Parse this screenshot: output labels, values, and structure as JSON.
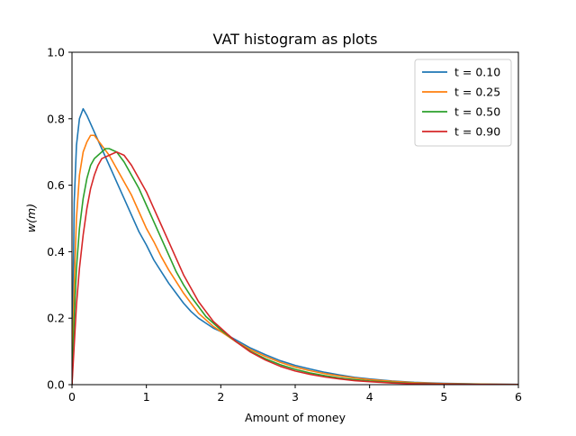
{
  "chart_data": {
    "type": "line",
    "title": "VAT histogram as plots",
    "xlabel": "Amount of money",
    "ylabel": "w(m)",
    "xlim": [
      0,
      6
    ],
    "ylim": [
      0,
      1.0
    ],
    "xticks": [
      0,
      1,
      2,
      3,
      4,
      5,
      6
    ],
    "xtick_labels": [
      "0",
      "1",
      "2",
      "3",
      "4",
      "5",
      "6"
    ],
    "yticks": [
      0.0,
      0.2,
      0.4,
      0.6,
      0.8,
      1.0
    ],
    "ytick_labels": [
      "0.0",
      "0.2",
      "0.4",
      "0.6",
      "0.8",
      "1.0"
    ],
    "grid": false,
    "legend_position": "top-right",
    "series": [
      {
        "name": "t = 0.10",
        "color": "#1f77b4",
        "points": [
          [
            0,
            0
          ],
          [
            0.03,
            0.55
          ],
          [
            0.06,
            0.72
          ],
          [
            0.1,
            0.8
          ],
          [
            0.15,
            0.83
          ],
          [
            0.2,
            0.81
          ],
          [
            0.3,
            0.76
          ],
          [
            0.4,
            0.71
          ],
          [
            0.5,
            0.66
          ],
          [
            0.6,
            0.61
          ],
          [
            0.7,
            0.56
          ],
          [
            0.8,
            0.51
          ],
          [
            0.9,
            0.46
          ],
          [
            1.0,
            0.42
          ],
          [
            1.1,
            0.375
          ],
          [
            1.2,
            0.34
          ],
          [
            1.3,
            0.305
          ],
          [
            1.4,
            0.275
          ],
          [
            1.5,
            0.245
          ],
          [
            1.6,
            0.22
          ],
          [
            1.7,
            0.2
          ],
          [
            1.8,
            0.185
          ],
          [
            1.9,
            0.17
          ],
          [
            2.0,
            0.16
          ],
          [
            2.2,
            0.135
          ],
          [
            2.4,
            0.11
          ],
          [
            2.6,
            0.09
          ],
          [
            2.8,
            0.072
          ],
          [
            3.0,
            0.058
          ],
          [
            3.2,
            0.047
          ],
          [
            3.4,
            0.037
          ],
          [
            3.6,
            0.029
          ],
          [
            3.8,
            0.022
          ],
          [
            4.0,
            0.017
          ],
          [
            4.3,
            0.011
          ],
          [
            4.6,
            0.007
          ],
          [
            5.0,
            0.004
          ],
          [
            5.5,
            0.002
          ],
          [
            6.0,
            0.001
          ]
        ]
      },
      {
        "name": "t = 0.25",
        "color": "#ff7f0e",
        "points": [
          [
            0,
            0
          ],
          [
            0.03,
            0.3
          ],
          [
            0.06,
            0.5
          ],
          [
            0.1,
            0.63
          ],
          [
            0.15,
            0.7
          ],
          [
            0.2,
            0.73
          ],
          [
            0.25,
            0.75
          ],
          [
            0.3,
            0.75
          ],
          [
            0.4,
            0.72
          ],
          [
            0.5,
            0.69
          ],
          [
            0.6,
            0.65
          ],
          [
            0.7,
            0.61
          ],
          [
            0.8,
            0.57
          ],
          [
            0.9,
            0.52
          ],
          [
            1.0,
            0.47
          ],
          [
            1.1,
            0.43
          ],
          [
            1.2,
            0.385
          ],
          [
            1.3,
            0.345
          ],
          [
            1.4,
            0.31
          ],
          [
            1.5,
            0.275
          ],
          [
            1.6,
            0.245
          ],
          [
            1.7,
            0.215
          ],
          [
            1.8,
            0.195
          ],
          [
            1.9,
            0.175
          ],
          [
            2.0,
            0.16
          ],
          [
            2.2,
            0.13
          ],
          [
            2.4,
            0.105
          ],
          [
            2.6,
            0.085
          ],
          [
            2.8,
            0.067
          ],
          [
            3.0,
            0.053
          ],
          [
            3.2,
            0.042
          ],
          [
            3.4,
            0.033
          ],
          [
            3.6,
            0.026
          ],
          [
            3.8,
            0.02
          ],
          [
            4.0,
            0.015
          ],
          [
            4.3,
            0.01
          ],
          [
            4.6,
            0.006
          ],
          [
            5.0,
            0.003
          ],
          [
            5.5,
            0.0015
          ],
          [
            6.0,
            0.0005
          ]
        ]
      },
      {
        "name": "t = 0.50",
        "color": "#2ca02c",
        "points": [
          [
            0,
            0
          ],
          [
            0.03,
            0.2
          ],
          [
            0.06,
            0.35
          ],
          [
            0.1,
            0.47
          ],
          [
            0.15,
            0.56
          ],
          [
            0.2,
            0.62
          ],
          [
            0.25,
            0.66
          ],
          [
            0.3,
            0.68
          ],
          [
            0.35,
            0.69
          ],
          [
            0.4,
            0.7
          ],
          [
            0.45,
            0.71
          ],
          [
            0.5,
            0.71
          ],
          [
            0.6,
            0.7
          ],
          [
            0.7,
            0.67
          ],
          [
            0.8,
            0.63
          ],
          [
            0.9,
            0.59
          ],
          [
            1.0,
            0.54
          ],
          [
            1.1,
            0.49
          ],
          [
            1.2,
            0.44
          ],
          [
            1.3,
            0.39
          ],
          [
            1.4,
            0.34
          ],
          [
            1.5,
            0.3
          ],
          [
            1.6,
            0.265
          ],
          [
            1.7,
            0.235
          ],
          [
            1.8,
            0.205
          ],
          [
            1.9,
            0.185
          ],
          [
            2.0,
            0.165
          ],
          [
            2.2,
            0.13
          ],
          [
            2.4,
            0.1
          ],
          [
            2.6,
            0.078
          ],
          [
            2.8,
            0.06
          ],
          [
            3.0,
            0.046
          ],
          [
            3.2,
            0.035
          ],
          [
            3.4,
            0.027
          ],
          [
            3.6,
            0.02
          ],
          [
            3.8,
            0.015
          ],
          [
            4.0,
            0.011
          ],
          [
            4.3,
            0.007
          ],
          [
            4.6,
            0.004
          ],
          [
            5.0,
            0.002
          ],
          [
            5.5,
            0.001
          ],
          [
            6.0,
            0.0003
          ]
        ]
      },
      {
        "name": "t = 0.90",
        "color": "#d62728",
        "points": [
          [
            0,
            0
          ],
          [
            0.03,
            0.12
          ],
          [
            0.06,
            0.24
          ],
          [
            0.1,
            0.35
          ],
          [
            0.15,
            0.45
          ],
          [
            0.2,
            0.53
          ],
          [
            0.25,
            0.59
          ],
          [
            0.3,
            0.63
          ],
          [
            0.35,
            0.66
          ],
          [
            0.4,
            0.68
          ],
          [
            0.5,
            0.69
          ],
          [
            0.6,
            0.7
          ],
          [
            0.7,
            0.69
          ],
          [
            0.8,
            0.66
          ],
          [
            0.9,
            0.62
          ],
          [
            1.0,
            0.58
          ],
          [
            1.1,
            0.53
          ],
          [
            1.2,
            0.48
          ],
          [
            1.3,
            0.43
          ],
          [
            1.4,
            0.38
          ],
          [
            1.5,
            0.33
          ],
          [
            1.6,
            0.29
          ],
          [
            1.7,
            0.25
          ],
          [
            1.8,
            0.22
          ],
          [
            1.9,
            0.19
          ],
          [
            2.0,
            0.17
          ],
          [
            2.2,
            0.13
          ],
          [
            2.4,
            0.098
          ],
          [
            2.6,
            0.074
          ],
          [
            2.8,
            0.055
          ],
          [
            3.0,
            0.041
          ],
          [
            3.2,
            0.031
          ],
          [
            3.4,
            0.023
          ],
          [
            3.6,
            0.017
          ],
          [
            3.8,
            0.012
          ],
          [
            4.0,
            0.009
          ],
          [
            4.3,
            0.005
          ],
          [
            4.6,
            0.003
          ],
          [
            5.0,
            0.0015
          ],
          [
            5.5,
            0.0005
          ],
          [
            6.0,
            0.0002
          ]
        ]
      }
    ]
  }
}
